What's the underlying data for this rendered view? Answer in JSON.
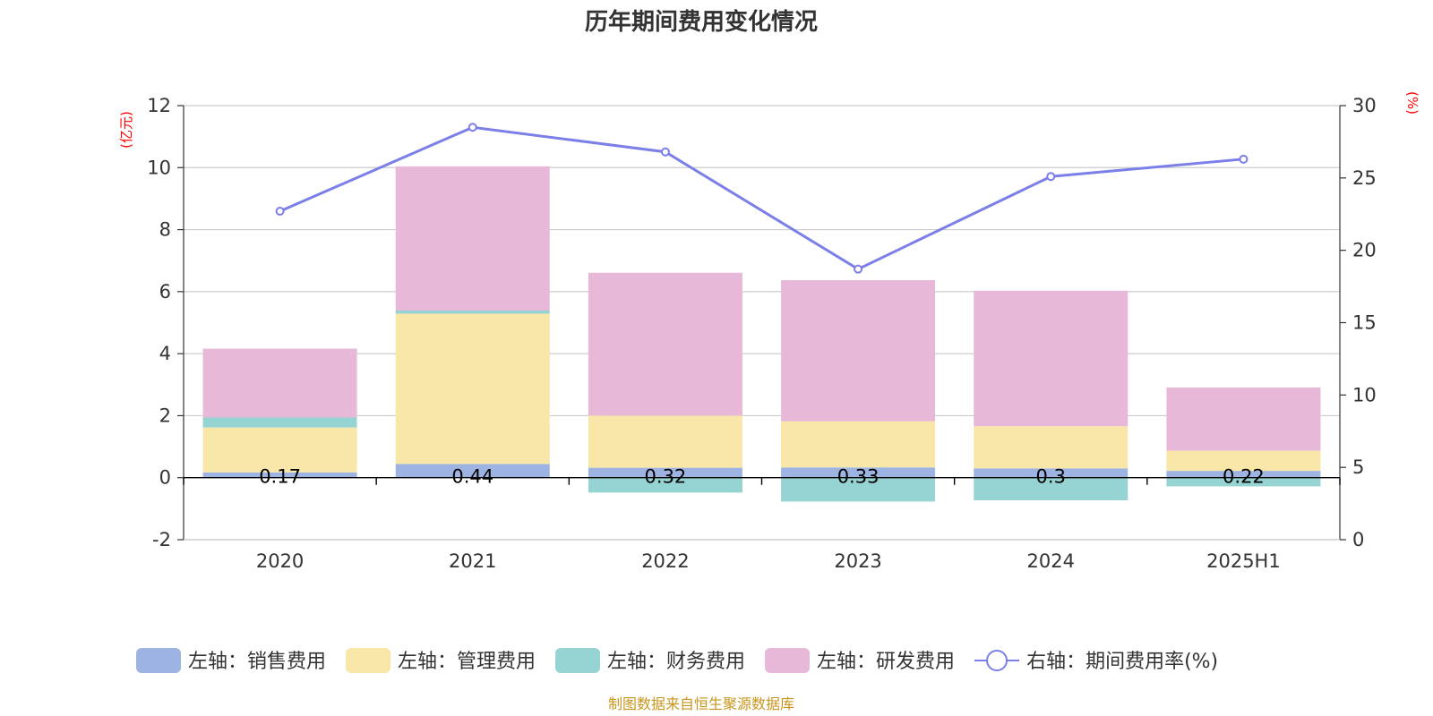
{
  "chart_data": {
    "type": "bar",
    "stacked": true,
    "title": "历年期间费用变化情况",
    "categories": [
      "2020",
      "2021",
      "2022",
      "2023",
      "2024",
      "2025H1"
    ],
    "y_left": {
      "unit_label": "(亿元)",
      "range": [
        -2,
        12
      ],
      "ticks": [
        "-2",
        "0",
        "2",
        "4",
        "6",
        "8",
        "10",
        "12"
      ]
    },
    "y_right": {
      "unit_label": "(%)",
      "range": [
        0,
        30
      ],
      "ticks": [
        "0",
        "5",
        "10",
        "15",
        "20",
        "25",
        "30"
      ]
    },
    "series": [
      {
        "name": "左轴：销售费用",
        "axis": "left",
        "kind": "bar",
        "color": "#9db4e2",
        "values": [
          0.17,
          0.44,
          0.32,
          0.33,
          0.3,
          0.22
        ],
        "labels": [
          "0.17",
          "0.44",
          "0.32",
          "0.33",
          "0.3",
          "0.22"
        ]
      },
      {
        "name": "左轴：管理费用",
        "axis": "left",
        "kind": "bar",
        "color": "#f8e7a8",
        "values": [
          1.45,
          4.85,
          1.68,
          1.49,
          1.36,
          0.65
        ]
      },
      {
        "name": "左轴：财务费用",
        "axis": "left",
        "kind": "bar",
        "color": "#96d3d3",
        "values": [
          0.32,
          0.1,
          -0.48,
          -0.77,
          -0.73,
          -0.28
        ]
      },
      {
        "name": "左轴：研发费用",
        "axis": "left",
        "kind": "bar",
        "color": "#e7b8d8",
        "values": [
          2.22,
          4.65,
          4.61,
          4.55,
          4.37,
          2.04
        ]
      },
      {
        "name": "右轴：期间费用率(%)",
        "axis": "right",
        "kind": "line",
        "color": "#7b7fe8",
        "values": [
          22.7,
          28.5,
          26.8,
          18.7,
          25.1,
          26.3
        ]
      }
    ],
    "grid": true,
    "legend_position": "bottom"
  },
  "footer": {
    "source": "制图数据来自恒生聚源数据库"
  }
}
